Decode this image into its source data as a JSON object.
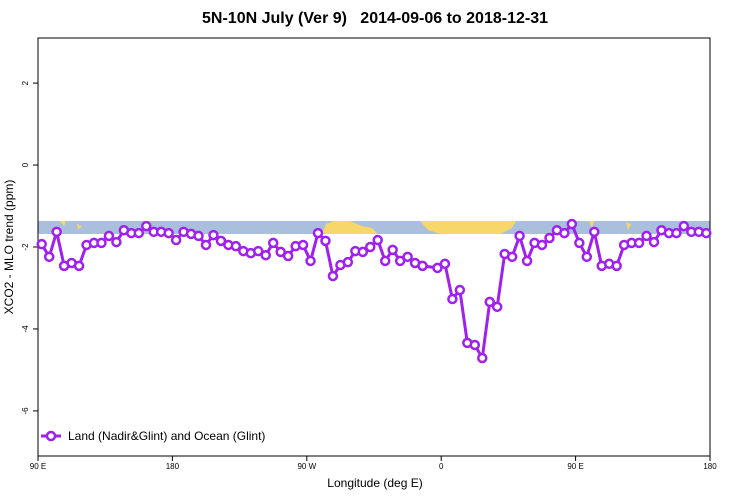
{
  "chart_data": {
    "type": "line",
    "title": "5N-10N July (Ver 9)   2014-09-06 to 2018-12-31",
    "x_label": "Longitude (deg E)",
    "y_label": "XCO2 - MLO trend (ppm)",
    "xlim": [
      90,
      540
    ],
    "xticks": [
      {
        "value": 90,
        "label": "90 E"
      },
      {
        "value": 180,
        "label": "180"
      },
      {
        "value": 270,
        "label": "90 W"
      },
      {
        "value": 360,
        "label": "0"
      },
      {
        "value": 450,
        "label": "90 E"
      },
      {
        "value": 540,
        "label": "180"
      }
    ],
    "ylim": [
      -7.1,
      3.1
    ],
    "yticks": [
      -6,
      -4,
      -2,
      0,
      2
    ],
    "legend": "bottom-left",
    "x": [
      92.5,
      97.5,
      102.5,
      107.5,
      112.5,
      117.5,
      122.5,
      127.5,
      132.5,
      137.5,
      142.5,
      147.5,
      152.5,
      157.5,
      162.5,
      167.5,
      172.5,
      177.5,
      182.5,
      187.5,
      192.5,
      197.5,
      202.5,
      207.5,
      212.5,
      217.5,
      222.5,
      227.5,
      232.5,
      237.5,
      242.5,
      247.5,
      252.5,
      257.5,
      262.5,
      267.5,
      272.5,
      277.5,
      282.5,
      287.5,
      292.5,
      297.5,
      302.5,
      307.5,
      312.5,
      317.5,
      322.5,
      327.5,
      332.5,
      337.5,
      342.5,
      347.5,
      357.5,
      362.5,
      367.5,
      372.5,
      377.5,
      382.5,
      387.5,
      392.5,
      397.5,
      402.5,
      407.5,
      412.5,
      417.5,
      422.5,
      427.5,
      432.5,
      437.5,
      442.5,
      447.5,
      452.5,
      457.5,
      462.5,
      467.5,
      472.5,
      477.5,
      482.5,
      487.5,
      492.5,
      497.5,
      502.5,
      507.5,
      512.5,
      517.5,
      522.5,
      527.5,
      532.5,
      537.5
    ],
    "series": [
      {
        "name": "Land (Nadir&Glint) and Ocean (Glint)",
        "color": "#a020f0",
        "values": [
          -1.93,
          -2.24,
          -1.63,
          -2.46,
          -2.39,
          -2.46,
          -1.95,
          -1.9,
          -1.9,
          -1.73,
          -1.88,
          -1.59,
          -1.66,
          -1.66,
          -1.49,
          -1.63,
          -1.63,
          -1.66,
          -1.83,
          -1.63,
          -1.68,
          -1.73,
          -1.95,
          -1.71,
          -1.85,
          -1.95,
          -1.98,
          -2.1,
          -2.15,
          -2.1,
          -2.2,
          -1.9,
          -2.12,
          -2.22,
          -1.98,
          -1.95,
          -2.34,
          -1.66,
          -1.85,
          -2.71,
          -2.44,
          -2.37,
          -2.1,
          -2.12,
          -2.0,
          -1.83,
          -2.34,
          -2.07,
          -2.34,
          -2.24,
          -2.39,
          -2.46,
          -2.51,
          -2.41,
          -3.27,
          -3.05,
          -4.34,
          -4.39,
          -4.71,
          -3.34,
          -3.46,
          -2.17,
          -2.24,
          -1.73,
          -2.34,
          -1.9,
          -1.95,
          -1.78,
          -1.59,
          -1.66,
          -1.44,
          -1.9,
          -2.24,
          -1.63,
          -2.46,
          -2.41,
          -2.46,
          -1.95,
          -1.9,
          -1.9,
          -1.73,
          -1.88,
          -1.59,
          -1.66,
          -1.66,
          -1.49,
          -1.63,
          -1.63,
          -1.66
        ]
      }
    ]
  }
}
